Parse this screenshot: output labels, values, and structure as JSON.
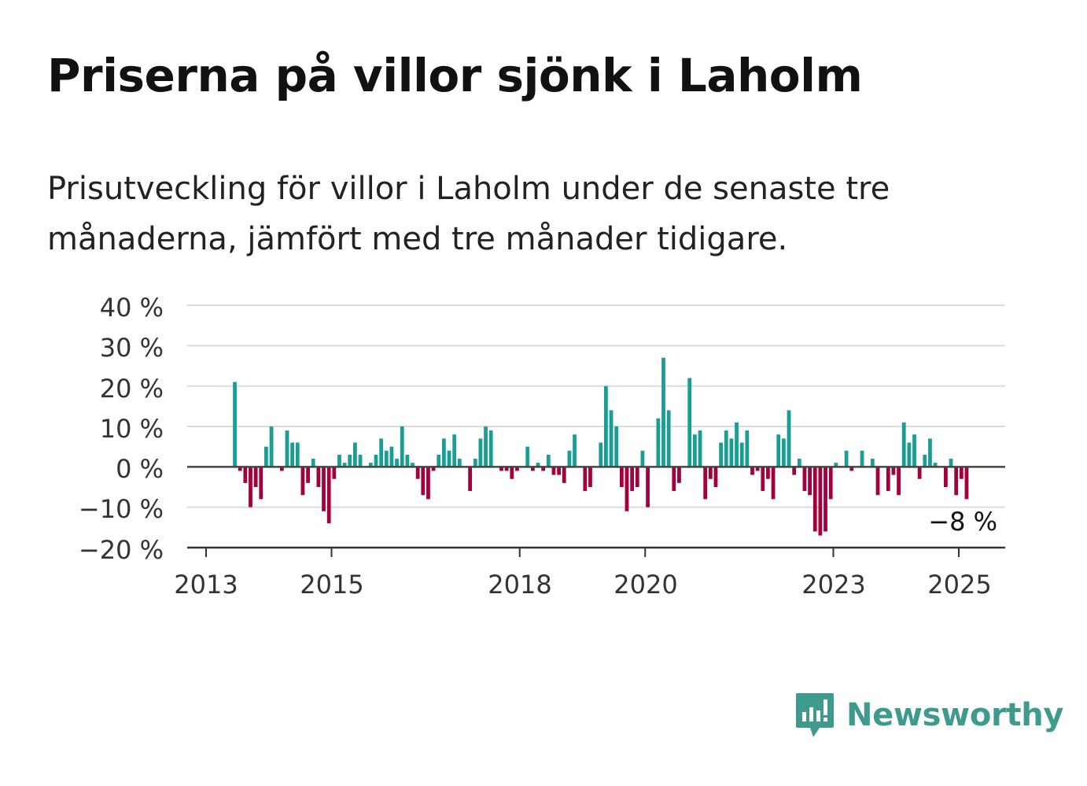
{
  "title": "Priserna på villor sjönk i Laholm",
  "subtitle": "Prisutveckling för villor i Laholm under de senaste tre månaderna, jämfört med tre månader tidigare.",
  "brand": {
    "name": "Newsworthy",
    "icon": "newsworthy-chart-bubble-icon",
    "color": "#3f9a8e"
  },
  "colors": {
    "positive": "#1a9e93",
    "negative": "#a3003e",
    "grid": "#dcdcdc",
    "axis": "#333333"
  },
  "chart_data": {
    "type": "bar",
    "x_unit": "month",
    "start": "2013-06",
    "end": "2025-01",
    "y_ticks": [
      "40 %",
      "30 %",
      "20 %",
      "10 %",
      "0 %",
      "−10 %",
      "−20 %"
    ],
    "ylim": [
      -20,
      40
    ],
    "x_ticks": [
      "2013",
      "2015",
      "2018",
      "2020",
      "2023",
      "2025"
    ],
    "grid": true,
    "last_label": "−8 %",
    "values": [
      21,
      -1,
      -4,
      -10,
      -5,
      -8,
      5,
      10,
      0,
      -1,
      9,
      6,
      6,
      -7,
      -4,
      2,
      -5,
      -11,
      -14,
      -3,
      3,
      1,
      3,
      6,
      3,
      0,
      1,
      3,
      7,
      4,
      5,
      2,
      10,
      3,
      1,
      -3,
      -7,
      -8,
      -1,
      3,
      7,
      4,
      8,
      2,
      0,
      -6,
      2,
      7,
      10,
      9,
      0,
      -1,
      -1,
      -3,
      -1,
      0,
      5,
      -1,
      1,
      -1,
      3,
      -2,
      -2,
      -4,
      4,
      8,
      0,
      -6,
      -5,
      0,
      6,
      20,
      14,
      10,
      -5,
      -11,
      -6,
      -5,
      4,
      -10,
      0,
      12,
      27,
      14,
      -6,
      -4,
      0,
      22,
      8,
      9,
      -8,
      -3,
      -5,
      6,
      9,
      7,
      11,
      6,
      9,
      -2,
      -1,
      -6,
      -3,
      -8,
      8,
      7,
      14,
      -2,
      2,
      -6,
      -7,
      -16,
      -17,
      -16,
      -8,
      1,
      0,
      4,
      -1,
      0,
      4,
      0,
      2,
      -7,
      0,
      -6,
      -2,
      -7,
      11,
      6,
      8,
      -3,
      3,
      7,
      1,
      0,
      -5,
      2,
      -7,
      -3,
      -8
    ]
  }
}
